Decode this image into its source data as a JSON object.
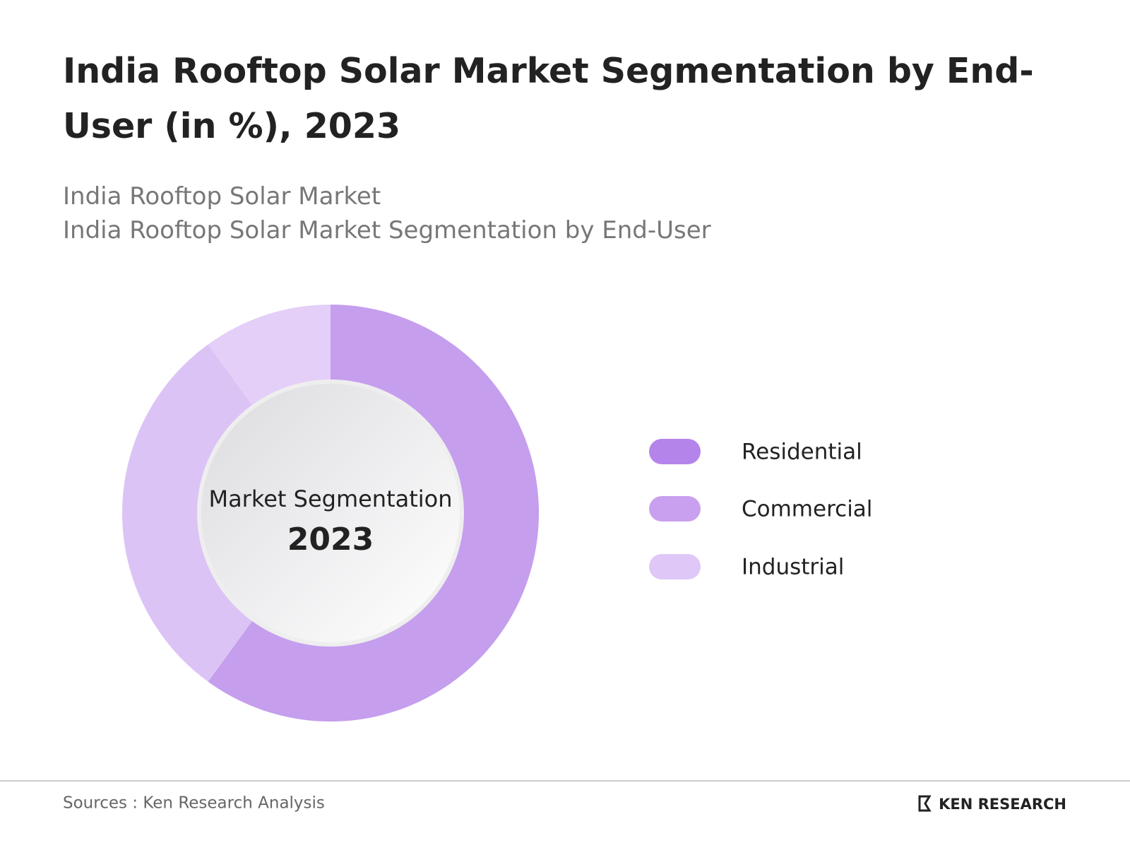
{
  "chart_data": {
    "type": "donut",
    "title": "India Rooftop Solar Market Segmentation by End-User (in %), 2023",
    "subtitle": [
      "India Rooftop Solar Market",
      "India Rooftop Solar Market Segmentation by End-User"
    ],
    "center_label": "Market Segmentation",
    "center_value": "2023",
    "categories": [
      "Residential",
      "Commercial",
      "Industrial"
    ],
    "values": [
      60,
      30,
      10
    ],
    "colors": [
      "#c59eee",
      "#dcc3f6",
      "#e4cff8"
    ],
    "legend_colors": [
      "#b584ea",
      "#c9a0ef",
      "#dfc8f7"
    ],
    "source": "Sources : Ken Research Analysis",
    "brand": "KEN RESEARCH"
  }
}
